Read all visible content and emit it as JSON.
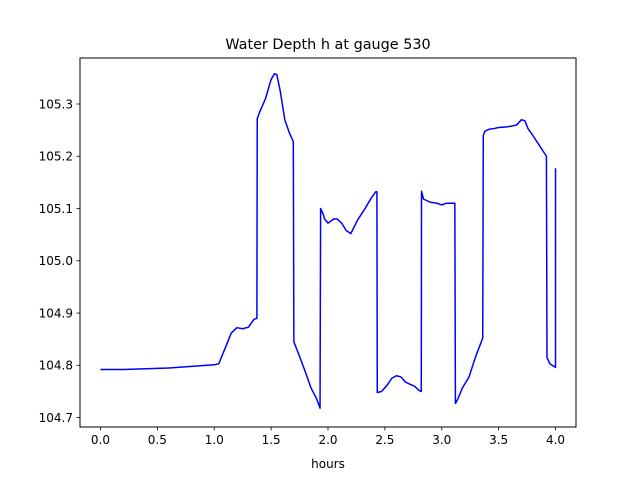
{
  "chart_data": {
    "type": "line",
    "title": "Water Depth h at gauge 530",
    "xlabel": "hours",
    "ylabel": "",
    "xlim": [
      -0.18,
      4.18
    ],
    "ylim": [
      104.682,
      105.388
    ],
    "x_ticks": [
      0.0,
      0.5,
      1.0,
      1.5,
      2.0,
      2.5,
      3.0,
      3.5,
      4.0
    ],
    "x_tick_labels": [
      "0.0",
      "0.5",
      "1.0",
      "1.5",
      "2.0",
      "2.5",
      "3.0",
      "3.5",
      "4.0"
    ],
    "y_ticks": [
      104.7,
      104.8,
      104.9,
      105.0,
      105.1,
      105.2,
      105.3
    ],
    "y_tick_labels": [
      "104.7",
      "104.8",
      "104.9",
      "105.0",
      "105.1",
      "105.2",
      "105.3"
    ],
    "grid": false,
    "legend": "none",
    "series": [
      {
        "color": "#0000ff",
        "x": [
          0.0,
          0.2,
          0.6,
          0.8,
          1.0,
          1.04,
          1.1,
          1.15,
          1.2,
          1.25,
          1.3,
          1.35,
          1.375,
          1.378,
          1.4,
          1.45,
          1.5,
          1.53,
          1.55,
          1.58,
          1.62,
          1.66,
          1.695,
          1.7,
          1.75,
          1.8,
          1.85,
          1.9,
          1.93,
          1.935,
          1.96,
          1.97,
          2.0,
          2.05,
          2.08,
          2.12,
          2.16,
          2.2,
          2.26,
          2.32,
          2.38,
          2.42,
          2.43,
          2.433,
          2.47,
          2.52,
          2.56,
          2.6,
          2.64,
          2.68,
          2.72,
          2.76,
          2.8,
          2.82,
          2.822,
          2.84,
          2.9,
          2.96,
          3.0,
          3.04,
          3.08,
          3.115,
          3.12,
          3.14,
          3.18,
          3.24,
          3.3,
          3.36,
          3.365,
          3.38,
          3.42,
          3.46,
          3.5,
          3.56,
          3.62,
          3.66,
          3.7,
          3.73,
          3.76,
          3.8,
          3.86,
          3.92,
          3.925,
          3.95,
          4.0,
          4.0,
          4.0
        ],
        "y": [
          104.792,
          104.792,
          104.795,
          104.798,
          104.801,
          104.803,
          104.835,
          104.862,
          104.872,
          104.87,
          104.873,
          104.888,
          104.89,
          105.272,
          105.285,
          105.31,
          105.347,
          105.358,
          105.356,
          105.325,
          105.27,
          105.245,
          105.228,
          104.845,
          104.817,
          104.788,
          104.757,
          104.736,
          104.718,
          105.1,
          105.088,
          105.08,
          105.072,
          105.08,
          105.08,
          105.072,
          105.058,
          105.052,
          105.078,
          105.098,
          105.12,
          105.132,
          105.132,
          104.748,
          104.75,
          104.762,
          104.775,
          104.78,
          104.778,
          104.768,
          104.764,
          104.76,
          104.752,
          104.75,
          105.133,
          105.118,
          105.112,
          105.11,
          105.107,
          105.11,
          105.11,
          105.11,
          104.727,
          104.735,
          104.756,
          104.778,
          104.818,
          104.852,
          105.24,
          105.248,
          105.252,
          105.253,
          105.255,
          105.256,
          105.258,
          105.26,
          105.27,
          105.268,
          105.252,
          105.24,
          105.22,
          105.2,
          104.815,
          104.803,
          104.796,
          105.177,
          105.177
        ]
      }
    ]
  }
}
